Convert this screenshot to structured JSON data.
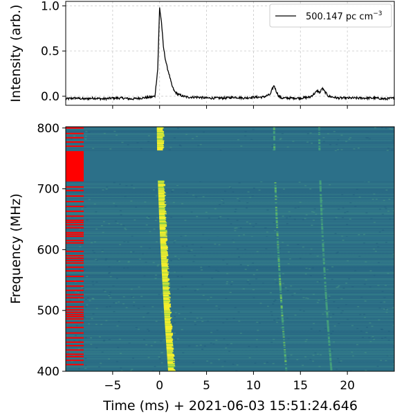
{
  "chart_data": [
    {
      "type": "line",
      "panel": "profile",
      "ylabel": "Intensity (arb.)",
      "ylim": [
        -0.1,
        1.05
      ],
      "yticks": [
        "0.0",
        "0.5",
        "1.0"
      ],
      "xlim": [
        -10,
        25
      ],
      "grid": true,
      "legend": {
        "placement": "top-right",
        "label": "500.147 pc cm",
        "superscript": "−3"
      },
      "series": [
        {
          "name": "500.147 pc cm⁻³",
          "x": [
            -10,
            -9,
            -8,
            -7,
            -6,
            -5,
            -4,
            -3,
            -2,
            -1,
            -0.5,
            -0.2,
            0,
            0.2,
            0.4,
            0.6,
            0.8,
            1.0,
            1.3,
            1.6,
            2.0,
            2.5,
            3,
            4,
            5,
            6,
            7,
            8,
            9,
            10,
            11,
            11.8,
            12.0,
            12.2,
            12.4,
            12.7,
            13,
            14,
            15,
            16,
            16.5,
            16.8,
            17.1,
            17.3,
            17.6,
            18,
            19,
            20,
            21,
            22,
            23,
            24,
            25
          ],
          "values": [
            -0.03,
            -0.02,
            -0.03,
            -0.02,
            -0.03,
            -0.02,
            -0.02,
            -0.03,
            -0.02,
            -0.01,
            0.0,
            0.3,
            0.98,
            0.82,
            0.55,
            0.42,
            0.32,
            0.25,
            0.12,
            0.05,
            0.02,
            0.0,
            -0.01,
            -0.01,
            -0.02,
            -0.02,
            -0.02,
            -0.01,
            -0.02,
            -0.01,
            -0.01,
            0.02,
            0.08,
            0.12,
            0.06,
            0.0,
            -0.02,
            -0.02,
            -0.02,
            -0.01,
            0.03,
            0.06,
            0.04,
            0.09,
            0.05,
            0.0,
            -0.02,
            -0.02,
            -0.02,
            -0.02,
            -0.02,
            -0.03,
            -0.02
          ]
        }
      ]
    },
    {
      "type": "heatmap",
      "panel": "dynamic-spectrum",
      "xlabel": "Time (ms) + 2021-06-03 15:51:24.646",
      "ylabel": "Frequency (MHz)",
      "xlim": [
        -10,
        25
      ],
      "ylim": [
        400,
        802
      ],
      "xticks": [
        "−5",
        "0",
        "5",
        "10",
        "15",
        "20"
      ],
      "yticks": [
        "400",
        "500",
        "600",
        "700",
        "800"
      ],
      "colormap": "viridis",
      "colors": {
        "background": "#2c6e86",
        "bright": "#f1ee2e",
        "flag": "#ff0000"
      },
      "masked_band_mhz": [
        712,
        762
      ],
      "masked_line_mhz": 619,
      "components": [
        {
          "t0_ms": 0.0,
          "sweep_ms": 1.2,
          "intensity": 1.0
        },
        {
          "t0_ms": 12.2,
          "sweep_ms": 1.3,
          "intensity": 0.35
        },
        {
          "t0_ms": 17.0,
          "sweep_ms": 1.3,
          "intensity": 0.28
        }
      ],
      "flagged_channels_mhz": [
        411,
        418,
        424,
        428,
        435,
        442,
        448,
        455,
        463,
        472,
        480,
        486,
        490,
        493,
        497,
        501,
        506,
        514,
        521,
        526,
        533,
        540,
        548,
        556,
        565,
        571,
        578,
        582,
        586,
        590,
        597,
        611,
        615,
        622,
        625,
        628,
        636,
        641,
        645,
        648,
        655,
        663,
        671,
        679,
        688,
        697,
        703,
        770,
        777,
        784,
        791,
        800
      ]
    }
  ]
}
